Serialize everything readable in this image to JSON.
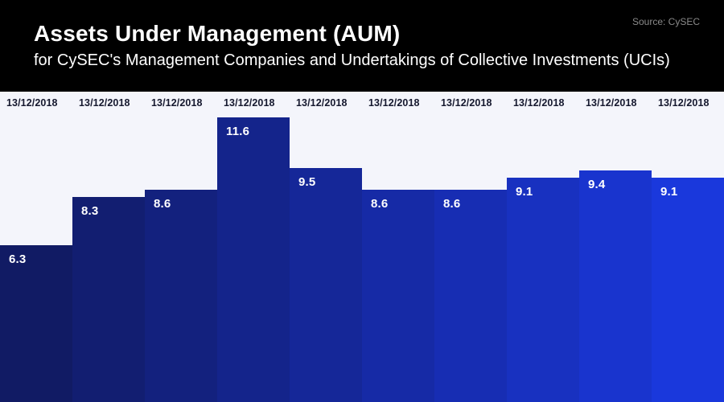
{
  "header": {
    "title": "Assets Under Management (AUM)",
    "subtitle": "for CySEC's Management Companies and Undertakings of Collective Investments (UCIs)",
    "source": "Source: CySEC"
  },
  "colors": {
    "header_bg": "#000000",
    "chart_bg": "#f4f5fb",
    "title_text": "#ffffff",
    "subtitle_text": "#ffffff",
    "source_text": "#8a8a8a",
    "date_label_text": "#15182e",
    "value_label_text": "#ffffff"
  },
  "chart_data": {
    "type": "bar",
    "title": "Assets Under Management (AUM)",
    "subtitle": "for CySEC's Management Companies and Undertakings of Collective Investments (UCIs)",
    "source": "Source: CySEC",
    "categories": [
      "13/12/2018",
      "13/12/2018",
      "13/12/2018",
      "13/12/2018",
      "13/12/2018",
      "13/12/2018",
      "13/12/2018",
      "13/12/2018",
      "13/12/2018",
      "13/12/2018"
    ],
    "values": [
      6.3,
      8.3,
      8.6,
      11.6,
      9.5,
      8.6,
      8.6,
      9.1,
      9.4,
      9.1
    ],
    "value_labels": [
      "6.3",
      "8.3",
      "8.6",
      "11.6",
      "9.5",
      "8.6",
      "8.6",
      "9.1",
      "9.4",
      "9.1"
    ],
    "bar_colors": [
      "#111b64",
      "#121e71",
      "#13217e",
      "#14248b",
      "#152798",
      "#162aa6",
      "#172db3",
      "#1831c0",
      "#1934ce",
      "#1a38dc"
    ],
    "xlabel": "",
    "ylabel": "",
    "ylim": [
      0,
      12.7
    ],
    "grid": false,
    "legend": "none",
    "category_label_position": "above-bars",
    "value_label_position": "inside-bar-top-left"
  }
}
